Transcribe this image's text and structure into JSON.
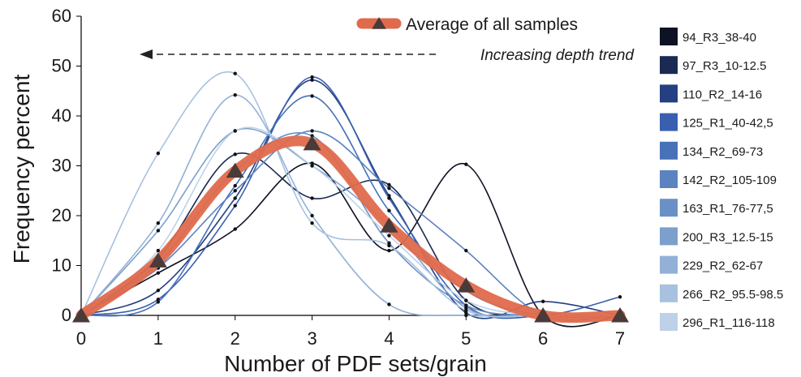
{
  "chart_data": {
    "type": "line",
    "xlabel": "Number of PDF sets/grain",
    "ylabel": "Frequency percent",
    "xlim": [
      0,
      7
    ],
    "ylim": [
      0,
      60
    ],
    "xticks": [
      0,
      1,
      2,
      3,
      4,
      5,
      6,
      7
    ],
    "yticks": [
      0,
      10,
      20,
      30,
      40,
      50,
      60
    ],
    "x": [
      0,
      1,
      2,
      3,
      4,
      5,
      6,
      7
    ],
    "grid": false,
    "legend_position": "right",
    "series": [
      {
        "name": "94_R3_38-40",
        "color": "#0d1224",
        "values": [
          0,
          8.5,
          17.3,
          30.5,
          13.0,
          30.3,
          0,
          0
        ]
      },
      {
        "name": "97_R3_10-12.5",
        "color": "#1a2a52",
        "values": [
          0,
          11.5,
          32.3,
          23.5,
          26.2,
          3.0,
          0,
          0
        ]
      },
      {
        "name": "110_R2_14-16",
        "color": "#243f82",
        "values": [
          0,
          5.0,
          23.5,
          47.2,
          24.0,
          0.5,
          2.8,
          0
        ]
      },
      {
        "name": "125_R1_40-42,5",
        "color": "#3960b0",
        "values": [
          0,
          3.2,
          22.0,
          47.8,
          23.5,
          2.0,
          0,
          3.7
        ]
      },
      {
        "name": "134_R2_69-73",
        "color": "#4772b8",
        "values": [
          0,
          2.7,
          26.0,
          44.0,
          21.0,
          5.0,
          0,
          0
        ]
      },
      {
        "name": "142_R2_105-109",
        "color": "#5a83c0",
        "values": [
          0,
          9.5,
          25.0,
          37.0,
          25.5,
          13.0,
          0,
          0
        ]
      },
      {
        "name": "163_R1_76-77,5",
        "color": "#6b90c6",
        "values": [
          0,
          10.5,
          29.0,
          36.0,
          14.5,
          2.0,
          0,
          0
        ]
      },
      {
        "name": "200_R3_12.5-15",
        "color": "#7c9fcc",
        "values": [
          0,
          17.0,
          37.0,
          30.0,
          18.0,
          1.5,
          0,
          0
        ]
      },
      {
        "name": "229_R2_62-67",
        "color": "#93b1d6",
        "values": [
          0,
          18.5,
          44.2,
          20.0,
          2.2,
          0,
          0,
          0
        ]
      },
      {
        "name": "266_R2_95.5-98.5",
        "color": "#a7c1df",
        "values": [
          0,
          32.5,
          48.5,
          18.5,
          14.0,
          1.0,
          0,
          0
        ]
      },
      {
        "name": "296_R1_116-118",
        "color": "#bdd1e8",
        "values": [
          0,
          13.0,
          37.0,
          30.0,
          16.0,
          3.0,
          0,
          0
        ]
      }
    ],
    "average": {
      "name": "Average of all samples",
      "color": "#e06a4c",
      "marker_color": "#4a3a38",
      "values": [
        0,
        11.0,
        29.0,
        34.5,
        18.0,
        6.0,
        0,
        0
      ]
    },
    "annotation": "Increasing depth trend"
  }
}
